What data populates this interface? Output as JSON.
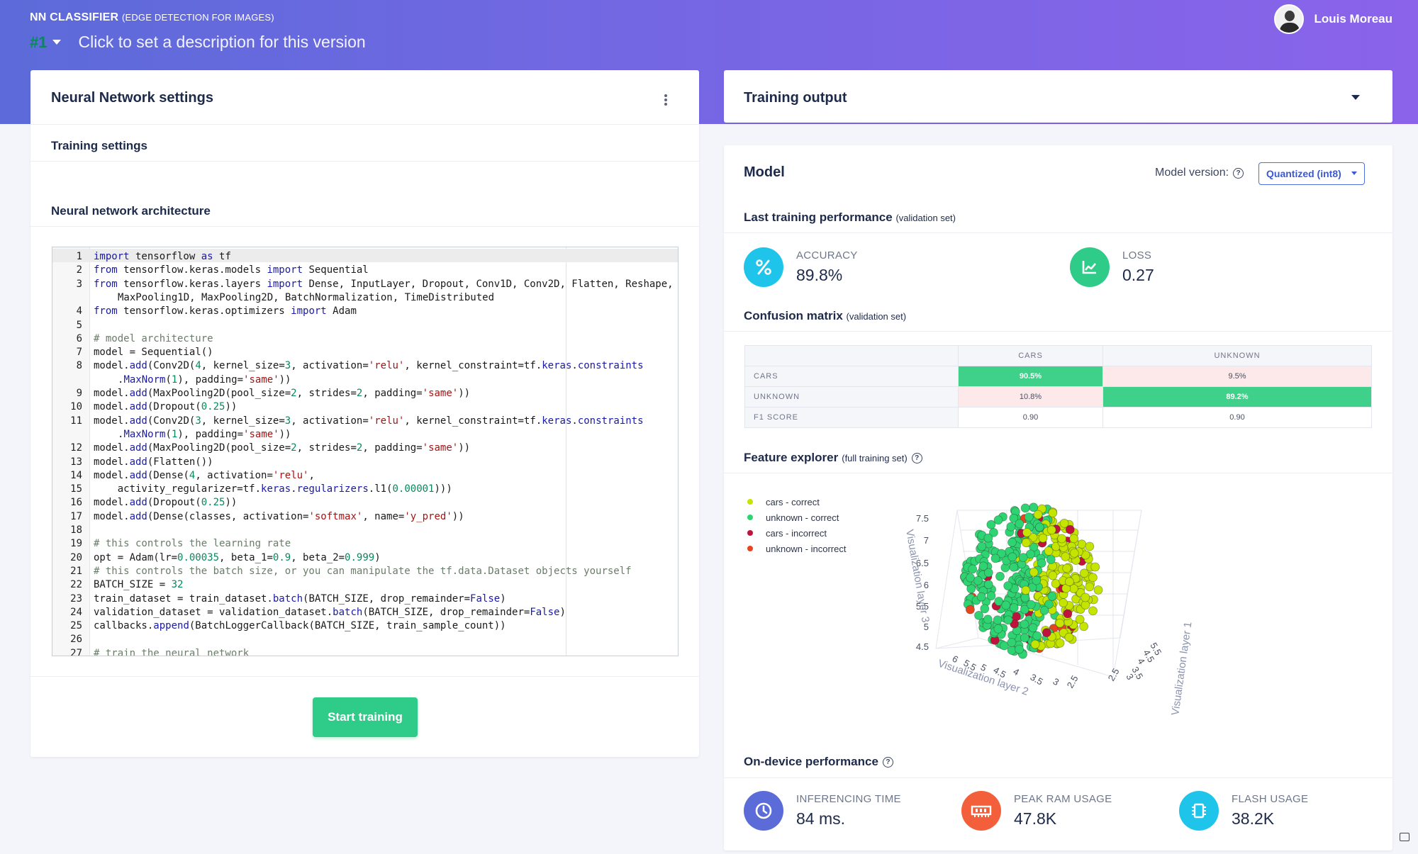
{
  "app": {
    "name": "NN CLASSIFIER",
    "subtitle": "(EDGE DETECTION FOR IMAGES)"
  },
  "version": {
    "number": "#1",
    "description_placeholder": "Click to set a description for this version"
  },
  "user": {
    "name": "Louis Moreau"
  },
  "nn_settings": {
    "title": "Neural Network settings",
    "training_settings_label": "Training settings",
    "architecture_label": "Neural network architecture",
    "start_button": "Start training",
    "code_lines": [
      {
        "n": "1",
        "parts": [
          [
            "kw",
            "import"
          ],
          [
            "t",
            " tensorflow "
          ],
          [
            "kw",
            "as"
          ],
          [
            "t",
            " tf"
          ]
        ]
      },
      {
        "n": "2",
        "parts": [
          [
            "kw",
            "from"
          ],
          [
            "t",
            " tensorflow.keras.models "
          ],
          [
            "kw",
            "import"
          ],
          [
            "t",
            " Sequential"
          ]
        ]
      },
      {
        "n": "3",
        "parts": [
          [
            "kw",
            "from"
          ],
          [
            "t",
            " tensorflow.keras.layers "
          ],
          [
            "kw",
            "import"
          ],
          [
            "t",
            " Dense, InputLayer, Dropout, Conv1D, Conv2D, Flatten, Reshape,"
          ]
        ]
      },
      {
        "n": "",
        "cont": true,
        "parts": [
          [
            "t",
            "MaxPooling1D, MaxPooling2D, BatchNormalization, TimeDistributed"
          ]
        ]
      },
      {
        "n": "4",
        "parts": [
          [
            "kw",
            "from"
          ],
          [
            "t",
            " tensorflow.keras.optimizers "
          ],
          [
            "kw",
            "import"
          ],
          [
            "t",
            " Adam"
          ]
        ]
      },
      {
        "n": "5",
        "parts": []
      },
      {
        "n": "6",
        "parts": [
          [
            "cm",
            "# model architecture"
          ]
        ]
      },
      {
        "n": "7",
        "parts": [
          [
            "t",
            "model = Sequential()"
          ]
        ]
      },
      {
        "n": "8",
        "parts": [
          [
            "t",
            "model."
          ],
          [
            "attr",
            "add"
          ],
          [
            "t",
            "(Conv2D("
          ],
          [
            "num",
            "4"
          ],
          [
            "t",
            ", kernel_size="
          ],
          [
            "num",
            "3"
          ],
          [
            "t",
            ", activation="
          ],
          [
            "str",
            "'relu'"
          ],
          [
            "t",
            ", kernel_constraint=tf."
          ],
          [
            "attr",
            "keras"
          ],
          [
            "t",
            "."
          ],
          [
            "attr",
            "constraints"
          ]
        ]
      },
      {
        "n": "",
        "cont": true,
        "parts": [
          [
            "t",
            "."
          ],
          [
            "attr",
            "MaxNorm"
          ],
          [
            "t",
            "("
          ],
          [
            "num",
            "1"
          ],
          [
            "t",
            "), padding="
          ],
          [
            "str",
            "'same'"
          ],
          [
            "t",
            "))"
          ]
        ]
      },
      {
        "n": "9",
        "parts": [
          [
            "t",
            "model."
          ],
          [
            "attr",
            "add"
          ],
          [
            "t",
            "(MaxPooling2D(pool_size="
          ],
          [
            "num",
            "2"
          ],
          [
            "t",
            ", strides="
          ],
          [
            "num",
            "2"
          ],
          [
            "t",
            ", padding="
          ],
          [
            "str",
            "'same'"
          ],
          [
            "t",
            "))"
          ]
        ]
      },
      {
        "n": "10",
        "parts": [
          [
            "t",
            "model."
          ],
          [
            "attr",
            "add"
          ],
          [
            "t",
            "(Dropout("
          ],
          [
            "num",
            "0.25"
          ],
          [
            "t",
            "))"
          ]
        ]
      },
      {
        "n": "11",
        "parts": [
          [
            "t",
            "model."
          ],
          [
            "attr",
            "add"
          ],
          [
            "t",
            "(Conv2D("
          ],
          [
            "num",
            "3"
          ],
          [
            "t",
            ", kernel_size="
          ],
          [
            "num",
            "3"
          ],
          [
            "t",
            ", activation="
          ],
          [
            "str",
            "'relu'"
          ],
          [
            "t",
            ", kernel_constraint=tf."
          ],
          [
            "attr",
            "keras"
          ],
          [
            "t",
            "."
          ],
          [
            "attr",
            "constraints"
          ]
        ]
      },
      {
        "n": "",
        "cont": true,
        "parts": [
          [
            "t",
            "."
          ],
          [
            "attr",
            "MaxNorm"
          ],
          [
            "t",
            "("
          ],
          [
            "num",
            "1"
          ],
          [
            "t",
            "), padding="
          ],
          [
            "str",
            "'same'"
          ],
          [
            "t",
            "))"
          ]
        ]
      },
      {
        "n": "12",
        "parts": [
          [
            "t",
            "model."
          ],
          [
            "attr",
            "add"
          ],
          [
            "t",
            "(MaxPooling2D(pool_size="
          ],
          [
            "num",
            "2"
          ],
          [
            "t",
            ", strides="
          ],
          [
            "num",
            "2"
          ],
          [
            "t",
            ", padding="
          ],
          [
            "str",
            "'same'"
          ],
          [
            "t",
            "))"
          ]
        ]
      },
      {
        "n": "13",
        "parts": [
          [
            "t",
            "model."
          ],
          [
            "attr",
            "add"
          ],
          [
            "t",
            "(Flatten())"
          ]
        ]
      },
      {
        "n": "14",
        "parts": [
          [
            "t",
            "model."
          ],
          [
            "attr",
            "add"
          ],
          [
            "t",
            "(Dense("
          ],
          [
            "num",
            "4"
          ],
          [
            "t",
            ", activation="
          ],
          [
            "str",
            "'relu'"
          ],
          [
            "t",
            ","
          ]
        ]
      },
      {
        "n": "15",
        "parts": [
          [
            "t",
            "    activity_regularizer=tf."
          ],
          [
            "attr",
            "keras"
          ],
          [
            "t",
            "."
          ],
          [
            "attr",
            "regularizers"
          ],
          [
            "t",
            ".l1("
          ],
          [
            "num",
            "0.00001"
          ],
          [
            "t",
            ")))"
          ]
        ]
      },
      {
        "n": "16",
        "parts": [
          [
            "t",
            "model."
          ],
          [
            "attr",
            "add"
          ],
          [
            "t",
            "(Dropout("
          ],
          [
            "num",
            "0.25"
          ],
          [
            "t",
            "))"
          ]
        ]
      },
      {
        "n": "17",
        "parts": [
          [
            "t",
            "model."
          ],
          [
            "attr",
            "add"
          ],
          [
            "t",
            "(Dense(classes, activation="
          ],
          [
            "str",
            "'softmax'"
          ],
          [
            "t",
            ", name="
          ],
          [
            "str",
            "'y_pred'"
          ],
          [
            "t",
            "))"
          ]
        ]
      },
      {
        "n": "18",
        "parts": []
      },
      {
        "n": "19",
        "parts": [
          [
            "cm",
            "# this controls the learning rate"
          ]
        ]
      },
      {
        "n": "20",
        "parts": [
          [
            "t",
            "opt = Adam(lr="
          ],
          [
            "num",
            "0.00035"
          ],
          [
            "t",
            ", beta_1="
          ],
          [
            "num",
            "0.9"
          ],
          [
            "t",
            ", beta_2="
          ],
          [
            "num",
            "0.999"
          ],
          [
            "t",
            ")"
          ]
        ]
      },
      {
        "n": "21",
        "parts": [
          [
            "cm",
            "# this controls the batch size, or you can manipulate the tf.data.Dataset objects yourself"
          ]
        ]
      },
      {
        "n": "22",
        "parts": [
          [
            "t",
            "BATCH_SIZE = "
          ],
          [
            "num",
            "32"
          ]
        ]
      },
      {
        "n": "23",
        "parts": [
          [
            "t",
            "train_dataset = train_dataset."
          ],
          [
            "attr",
            "batch"
          ],
          [
            "t",
            "(BATCH_SIZE, drop_remainder="
          ],
          [
            "kw",
            "False"
          ],
          [
            "t",
            ")"
          ]
        ]
      },
      {
        "n": "24",
        "parts": [
          [
            "t",
            "validation_dataset = validation_dataset."
          ],
          [
            "attr",
            "batch"
          ],
          [
            "t",
            "(BATCH_SIZE, drop_remainder="
          ],
          [
            "kw",
            "False"
          ],
          [
            "t",
            ")"
          ]
        ]
      },
      {
        "n": "25",
        "parts": [
          [
            "t",
            "callbacks."
          ],
          [
            "attr",
            "append"
          ],
          [
            "t",
            "(BatchLoggerCallback(BATCH_SIZE, train_sample_count))"
          ]
        ]
      },
      {
        "n": "26",
        "parts": []
      },
      {
        "n": "27",
        "parts": [
          [
            "cm",
            "# train the neural network"
          ]
        ]
      }
    ]
  },
  "training_output": {
    "title": "Training output",
    "model_title": "Model",
    "model_version_label": "Model version:",
    "model_version_value": "Quantized (int8)",
    "last_perf_label": "Last training performance",
    "last_perf_note": "(validation set)",
    "accuracy_label": "ACCURACY",
    "accuracy_value": "89.8%",
    "loss_label": "LOSS",
    "loss_value": "0.27",
    "confusion_label": "Confusion matrix",
    "confusion_note": "(validation set)",
    "confusion": {
      "columns": [
        "CARS",
        "UNKNOWN"
      ],
      "rows": [
        {
          "label": "CARS",
          "cells": [
            {
              "v": "90.5%",
              "k": "good"
            },
            {
              "v": "9.5%",
              "k": "bad"
            }
          ]
        },
        {
          "label": "UNKNOWN",
          "cells": [
            {
              "v": "10.8%",
              "k": "bad"
            },
            {
              "v": "89.2%",
              "k": "good"
            }
          ]
        },
        {
          "label": "F1 SCORE",
          "cells": [
            {
              "v": "0.90",
              "k": ""
            },
            {
              "v": "0.90",
              "k": ""
            }
          ]
        }
      ]
    },
    "feature_label": "Feature explorer",
    "feature_note": "(full training set)",
    "legend": [
      {
        "label": "cars - correct",
        "color": "#c5e400"
      },
      {
        "label": "unknown - correct",
        "color": "#2fd472"
      },
      {
        "label": "cars - incorrect",
        "color": "#c0123c"
      },
      {
        "label": "unknown - incorrect",
        "color": "#e8451f"
      }
    ],
    "plot": {
      "axis_z_label": "Visualization layer 3",
      "axis_x_label": "Visualization layer 2",
      "axis_y_label": "Visualization layer 1",
      "z_ticks": [
        "7.5",
        "7",
        "6.5",
        "6",
        "5.5",
        "5",
        "4.5"
      ],
      "x_ticks": [
        "6",
        "5.5",
        "5",
        "4.5",
        "4",
        "3.5",
        "3",
        "2.5"
      ],
      "y_ticks": [
        "5.5",
        "4.5",
        "4",
        "3.5",
        "3",
        "2.5"
      ]
    },
    "ondevice_label": "On-device performance",
    "inferencing_label": "INFERENCING TIME",
    "inferencing_value": "84 ms.",
    "ram_label": "PEAK RAM USAGE",
    "ram_value": "47.8K",
    "flash_label": "FLASH USAGE",
    "flash_value": "38.2K"
  },
  "colors": {
    "header_start": "#5c6bd9",
    "header_end": "#8a63ea",
    "accent_green": "#2ecc88",
    "accuracy_icon": "#1fc4ea",
    "loss_icon": "#2ecc88",
    "time_icon": "#5b6bd8",
    "ram_icon": "#f25f3a",
    "flash_icon": "#1fc4ea"
  }
}
